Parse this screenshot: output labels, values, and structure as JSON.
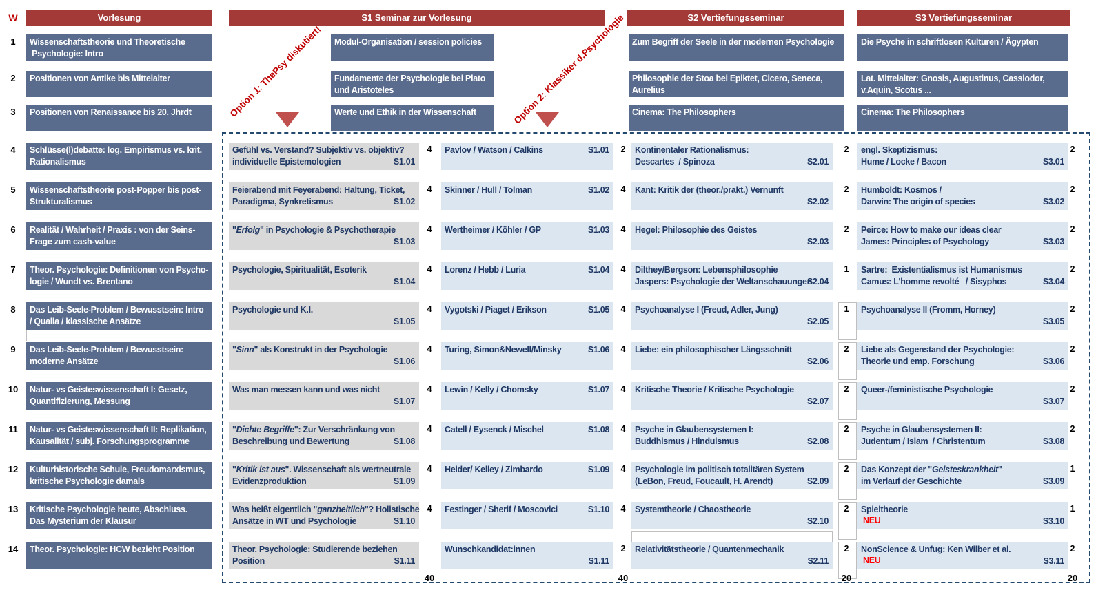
{
  "header": {
    "w": "W",
    "vorlesung": "Vorlesung",
    "s1": "S1 Seminar zur Vorlesung",
    "s2": "S2 Vertiefungsseminar",
    "s3": "S3 Vertiefungsseminar"
  },
  "options": {
    "option1": "Option 1: ThePsy diskutiert!",
    "option2": "Option 2: Klassiker d.Psychologie"
  },
  "colors": {
    "header_red": "#A33A38",
    "slate_blue": "#5A6C8E",
    "light_blue": "#DCE6F1",
    "light_gray": "#D9D9D9",
    "navy_text": "#1F3864",
    "annotation_red": "#C00000",
    "neu_red": "#FF0000",
    "triangle_red": "#C0504D"
  },
  "intro_rows": [
    {
      "week": "1",
      "vorlesung": "Wissenschaftstheorie und Theoretische\n Psychologie: Intro",
      "s1": "Modul-Organisation / session policies",
      "s2": "Zum Begriff der Seele in der modernen Psychologie",
      "s3": "Die Psyche in schriftlosen Kulturen / Ägypten"
    },
    {
      "week": "2",
      "vorlesung": "Positionen von Antike bis Mittelalter",
      "s1": "Fundamente der Psychologie bei Plato\nund Aristoteles",
      "s2": "Philosophie der Stoa bei Epiktet, Cicero, Seneca,\nAurelius",
      "s3": "Lat. Mittelalter: Gnosis, Augustinus, Cassiodor,\nv.Aquin, Scotus ..."
    },
    {
      "week": "3",
      "vorlesung": "Positionen von Renaissance bis 20. Jhrdt",
      "s1": "Werte und Ethik in der Wissenschaft",
      "s2": "Cinema: The Philosophers",
      "s3": "Cinema: The Philosophers"
    }
  ],
  "rows": [
    {
      "week": "4",
      "vorlesung": "Schlüsse(l)debatte: log. Empirismus vs. krit.\nRationalismus",
      "s1a": {
        "title": "Gefühl vs. Verstand? Subjektiv vs. objektiv?\nindividuelle Epistemologien",
        "code": "S1.01",
        "slots": "4"
      },
      "s1b": {
        "title": "Pavlov / Watson / Calkins",
        "code": "S1.01",
        "slots": "2"
      },
      "s2": {
        "title": "Kontinentaler Rationalismus:\nDescartes  / Spinoza",
        "code": "S2.01",
        "slots": "2"
      },
      "s3": {
        "title": "engl. Skeptizismus:\nHume / Locke / Bacon",
        "code": "S3.01",
        "slots": "2"
      }
    },
    {
      "week": "5",
      "vorlesung": "Wissenschaftstheorie post-Popper bis post-\nStrukturalismus",
      "s1a": {
        "title": "Feierabend mit Feyerabend: Haltung, Ticket,\nParadigma, Synkretismus",
        "code": "S1.02",
        "slots": "4"
      },
      "s1b": {
        "title": "Skinner / Hull / Tolman",
        "code": "S1.02",
        "slots": "4"
      },
      "s2": {
        "title": "Kant: Kritik der (theor./prakt.) Vernunft",
        "code": "S2.02",
        "slots": "2"
      },
      "s3": {
        "title": "Humboldt: Kosmos /\nDarwin: The origin of species",
        "code": "S3.02",
        "slots": "2"
      }
    },
    {
      "week": "6",
      "vorlesung": "Realität / Wahrheit / Praxis : von der Seins-\nFrage zum cash-value",
      "s1a": {
        "title": "\"Erfolg\" in Psychologie & Psychotherapie",
        "code": "S1.03",
        "slots": "4"
      },
      "s1b": {
        "title": "Wertheimer / Köhler / GP",
        "code": "S1.03",
        "slots": "4"
      },
      "s2": {
        "title": "Hegel: Philosophie des Geistes",
        "code": "S2.03",
        "slots": "2"
      },
      "s3": {
        "title": "Peirce: How to make our ideas clear\nJames: Principles of Psychology",
        "code": "S3.03",
        "slots": "2"
      }
    },
    {
      "week": "7",
      "vorlesung": "Theor. Psychologie: Definitionen von Psycho-\nlogie / Wundt vs. Brentano",
      "s1a": {
        "title": "Psychologie, Spiritualität, Esoterik",
        "code": "S1.04",
        "slots": "4"
      },
      "s1b": {
        "title": "Lorenz / Hebb / Luria",
        "code": "S1.04",
        "slots": "4"
      },
      "s2": {
        "title": "Dilthey/Bergson: Lebensphilosophie\nJaspers: Psychologie der Weltanschauungen",
        "code": "S2.04",
        "slots": "1"
      },
      "s3": {
        "title": "Sartre:  Existentialismus ist Humanismus\nCamus: L'homme revolté   / Sisyphos",
        "code": "S3.04",
        "slots": "2"
      }
    },
    {
      "week": "8",
      "vorlesung": "Das Leib-Seele-Problem / Bewusstsein: Intro\n/ Qualia / klassische Ansätze",
      "s1a": {
        "title": "Psychologie und K.I.",
        "code": "S1.05",
        "slots": "4"
      },
      "s1b": {
        "title": "Vygotski / Piaget / Erikson",
        "code": "S1.05",
        "slots": "4"
      },
      "s2": {
        "title": "Psychoanalyse I (Freud, Adler, Jung)",
        "code": "S2.05",
        "slots": "1"
      },
      "s3": {
        "title": "Psychoanalyse II (Fromm, Horney)",
        "code": "S3.05",
        "slots": "2"
      }
    },
    {
      "week": "9",
      "vorlesung": "Das Leib-Seele-Problem / Bewusstsein:\nmoderne Ansätze",
      "s1a": {
        "title": "\"Sinn\" als Konstrukt in der Psychologie",
        "code": "S1.06",
        "slots": "4"
      },
      "s1b": {
        "title": "Turing, Simon&Newell/Minsky",
        "code": "S1.06",
        "slots": "4"
      },
      "s2": {
        "title": "Liebe: ein philosophischer Längsschnitt",
        "code": "S2.06",
        "slots": "2"
      },
      "s3": {
        "title": "Liebe als Gegenstand der Psychologie:\nTheorie und emp. Forschung",
        "code": "S3.06",
        "slots": "2"
      }
    },
    {
      "week": "10",
      "vorlesung": "Natur- vs Geisteswissenschaft I: Gesetz,\nQuantifizierung, Messung",
      "s1a": {
        "title": "Was man messen kann und was nicht",
        "code": "S1.07",
        "slots": "4"
      },
      "s1b": {
        "title": "Lewin / Kelly / Chomsky",
        "code": "S1.07",
        "slots": "4"
      },
      "s2": {
        "title": "Kritische Theorie / Kritische Psychologie",
        "code": "S2.07",
        "slots": "2"
      },
      "s3": {
        "title": "Queer-/feministische Psychologie",
        "code": "S3.07",
        "slots": "2"
      }
    },
    {
      "week": "11",
      "vorlesung": "Natur- vs Geisteswissenschaft II: Replikation,\nKausalität / subj. Forschungsprogramme",
      "s1a": {
        "title": "\"Dichte Begriffe\": Zur Verschränkung von\nBeschreibung und Bewertung",
        "code": "S1.08",
        "slots": "4"
      },
      "s1b": {
        "title": "Catell / Eysenck / Mischel",
        "code": "S1.08",
        "slots": "4"
      },
      "s2": {
        "title": "Psyche in Glaubensystemen I:\nBuddhismus / Hinduismus",
        "code": "S2.08",
        "slots": "2"
      },
      "s3": {
        "title": "Psyche in Glaubensystemen II:\nJudentum / Islam  / Christentum",
        "code": "S3.08",
        "slots": "2"
      }
    },
    {
      "week": "12",
      "vorlesung": "Kulturhistorische Schule, Freudomarxismus,\nkritische Psychologie damals",
      "s1a": {
        "title": "\"Kritik ist aus\". Wissenschaft als wertneutrale\nEvidenzproduktion",
        "code": "S1.09",
        "slots": "4"
      },
      "s1b": {
        "title": "Heider/ Kelley / Zimbardo",
        "code": "S1.09",
        "slots": "4"
      },
      "s2": {
        "title": "Psychologie im politisch totalitären System\n(LeBon, Freud, Foucault, H. Arendt)",
        "code": "S2.09",
        "slots": "2"
      },
      "s3": {
        "title": "Das Konzept der \"Geisteskrankheit\"\nim Verlauf der Geschichte",
        "code": "S3.09",
        "slots": "1"
      }
    },
    {
      "week": "13",
      "vorlesung": "Kritische Psychologie heute, Abschluss.\nDas Mysterium der Klausur",
      "s1a": {
        "title": "Was heißt eigentlich \"ganzheitlich\"? Holistische\nAnsätze in WT und Psychologie",
        "code": "S1.10",
        "slots": "4"
      },
      "s1b": {
        "title": "Festinger / Sherif / Moscovici",
        "code": "S1.10",
        "slots": "4"
      },
      "s2": {
        "title": "Systemtheorie / Chaostheorie",
        "code": "S2.10",
        "slots": "2"
      },
      "s3": {
        "title": "Spieltheorie",
        "badge": "NEU",
        "code": "S3.10",
        "slots": "1"
      }
    },
    {
      "week": "14",
      "vorlesung": "Theor. Psychologie: HCW bezieht Position",
      "s1a": {
        "title": "Theor. Psychologie: Studierende beziehen\nPosition",
        "code": "S1.11",
        "slots": ""
      },
      "s1b": {
        "title": "Wunschkandidat:innen",
        "code": "S1.11",
        "slots": "2"
      },
      "s2": {
        "title": "Relativitätstheorie / Quantenmechanik",
        "code": "S2.11",
        "slots": "2"
      },
      "s3": {
        "title": "NonScience & Unfug: Ken Wilber et al.",
        "badge": "NEU",
        "code": "S3.11",
        "slots": "2"
      }
    }
  ],
  "totals": {
    "s1a": "40",
    "s1b": "40",
    "s2": "20",
    "s3": "20"
  }
}
